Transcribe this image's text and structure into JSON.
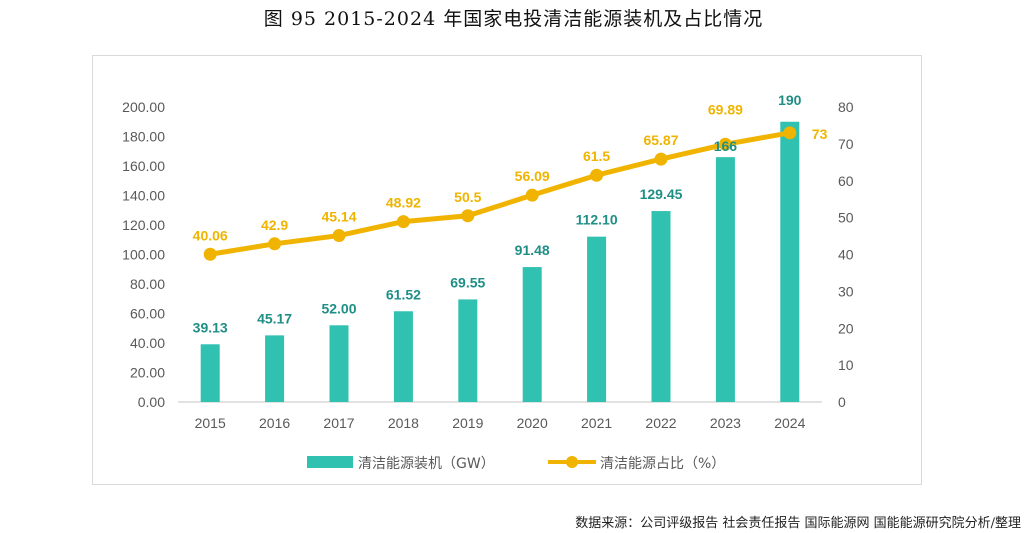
{
  "title": "图 95 2015-2024 年国家电投清洁能源装机及占比情况",
  "source": "数据来源：公司评级报告 社会责任报告 国际能源网 国能能源研究院分析/整理",
  "colors": {
    "bar": "#31c1b1",
    "line": "#f0b400",
    "bar_label": "#1f8f86",
    "axis": "#d9d9d9"
  },
  "chart_data": {
    "type": "bar+line",
    "title": "图 95 2015-2024 年国家电投清洁能源装机及占比情况",
    "categories": [
      "2015",
      "2016",
      "2017",
      "2018",
      "2019",
      "2020",
      "2021",
      "2022",
      "2023",
      "2024"
    ],
    "series": [
      {
        "name": "清洁能源装机（GW）",
        "type": "bar",
        "axis": "left",
        "values": [
          39.13,
          45.17,
          52.0,
          61.52,
          69.55,
          91.48,
          112.1,
          129.45,
          166,
          190
        ],
        "labels": [
          "39.13",
          "45.17",
          "52.00",
          "61.52",
          "69.55",
          "91.48",
          "112.10",
          "129.45",
          "166",
          "190"
        ]
      },
      {
        "name": "清洁能源占比（%）",
        "type": "line",
        "axis": "right",
        "values": [
          40.06,
          42.9,
          45.14,
          48.92,
          50.5,
          56.09,
          61.5,
          65.87,
          69.89,
          73
        ],
        "labels": [
          "40.06",
          "42.9",
          "45.14",
          "48.92",
          "50.5",
          "56.09",
          "61.5",
          "65.87",
          "69.89",
          "73"
        ]
      }
    ],
    "y_left": {
      "range": [
        0,
        200
      ],
      "ticks": [
        "0.00",
        "20.00",
        "40.00",
        "60.00",
        "80.00",
        "100.00",
        "120.00",
        "140.00",
        "160.00",
        "180.00",
        "200.00"
      ]
    },
    "y_right": {
      "range": [
        0,
        80
      ],
      "ticks": [
        "0",
        "10",
        "20",
        "30",
        "40",
        "50",
        "60",
        "70",
        "80"
      ]
    },
    "grid": false,
    "legend": {
      "position": "bottom",
      "items": [
        "清洁能源装机（GW）",
        "清洁能源占比（%）"
      ]
    }
  }
}
